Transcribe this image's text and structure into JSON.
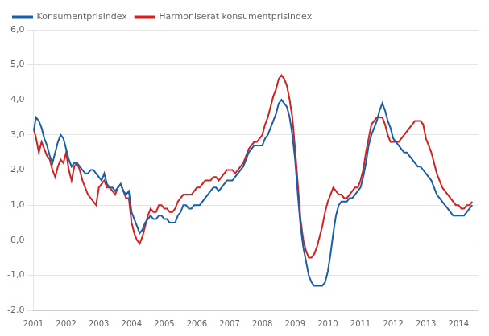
{
  "chart_data": {
    "type": "line",
    "x": [
      2001,
      2001.0833333333333,
      2001.1666666666667,
      2001.25,
      2001.3333333333333,
      2001.4166666666667,
      2001.5,
      2001.5833333333333,
      2001.6666666666667,
      2001.75,
      2001.8333333333333,
      2001.9166666666667,
      2002,
      2002.0833333333333,
      2002.1666666666667,
      2002.25,
      2002.3333333333333,
      2002.4166666666667,
      2002.5,
      2002.5833333333333,
      2002.6666666666667,
      2002.75,
      2002.8333333333333,
      2002.9166666666667,
      2003,
      2003.0833333333333,
      2003.1666666666667,
      2003.25,
      2003.3333333333333,
      2003.4166666666667,
      2003.5,
      2003.5833333333333,
      2003.6666666666667,
      2003.75,
      2003.8333333333333,
      2003.9166666666667,
      2004,
      2004.0833333333333,
      2004.1666666666667,
      2004.25,
      2004.3333333333333,
      2004.4166666666667,
      2004.5,
      2004.5833333333333,
      2004.6666666666667,
      2004.75,
      2004.8333333333333,
      2004.9166666666667,
      2005,
      2005.0833333333333,
      2005.1666666666667,
      2005.25,
      2005.3333333333333,
      2005.4166666666667,
      2005.5,
      2005.5833333333333,
      2005.6666666666667,
      2005.75,
      2005.8333333333333,
      2005.9166666666667,
      2006,
      2006.0833333333333,
      2006.1666666666667,
      2006.25,
      2006.3333333333333,
      2006.4166666666667,
      2006.5,
      2006.5833333333333,
      2006.6666666666667,
      2006.75,
      2006.8333333333333,
      2006.9166666666667,
      2007,
      2007.0833333333333,
      2007.1666666666667,
      2007.25,
      2007.3333333333333,
      2007.4166666666667,
      2007.5,
      2007.5833333333333,
      2007.6666666666667,
      2007.75,
      2007.8333333333333,
      2007.9166666666667,
      2008,
      2008.0833333333333,
      2008.1666666666667,
      2008.25,
      2008.3333333333333,
      2008.4166666666667,
      2008.5,
      2008.5833333333333,
      2008.6666666666667,
      2008.75,
      2008.8333333333333,
      2008.9166666666667,
      2009,
      2009.0833333333333,
      2009.1666666666667,
      2009.25,
      2009.3333333333333,
      2009.4166666666667,
      2009.5,
      2009.5833333333333,
      2009.6666666666667,
      2009.75,
      2009.8333333333333,
      2009.9166666666667,
      2010,
      2010.0833333333333,
      2010.1666666666667,
      2010.25,
      2010.3333333333333,
      2010.4166666666667,
      2010.5,
      2010.5833333333333,
      2010.6666666666667,
      2010.75,
      2010.8333333333333,
      2010.9166666666667,
      2011,
      2011.0833333333333,
      2011.1666666666667,
      2011.25,
      2011.3333333333333,
      2011.4166666666667,
      2011.5,
      2011.5833333333333,
      2011.6666666666667,
      2011.75,
      2011.8333333333333,
      2011.9166666666667,
      2012,
      2012.0833333333333,
      2012.1666666666667,
      2012.25,
      2012.3333333333333,
      2012.4166666666667,
      2012.5,
      2012.5833333333333,
      2012.6666666666667,
      2012.75,
      2012.8333333333333,
      2012.9166666666667,
      2013,
      2013.0833333333333,
      2013.1666666666667,
      2013.25,
      2013.3333333333333,
      2013.4166666666667,
      2013.5,
      2013.5833333333333,
      2013.6666666666667,
      2013.75,
      2013.8333333333333,
      2013.9166666666667,
      2014,
      2014.0833333333333,
      2014.1666666666667,
      2014.25,
      2014.3333333333333,
      2014.4166666666667
    ],
    "series": [
      {
        "name": "Konsumentprisindex",
        "color": "#1a5fa8",
        "values": [
          3.1,
          3.5,
          3.4,
          3.2,
          2.9,
          2.7,
          2.4,
          2.2,
          2.5,
          2.8,
          3.0,
          2.9,
          2.6,
          2.3,
          2.1,
          2.2,
          2.2,
          2.1,
          2.0,
          1.9,
          1.9,
          2.0,
          2.0,
          1.9,
          1.8,
          1.7,
          1.9,
          1.6,
          1.5,
          1.5,
          1.4,
          1.5,
          1.6,
          1.4,
          1.3,
          1.4,
          0.8,
          0.6,
          0.4,
          0.2,
          0.3,
          0.5,
          0.6,
          0.7,
          0.6,
          0.6,
          0.7,
          0.7,
          0.6,
          0.6,
          0.5,
          0.5,
          0.5,
          0.7,
          0.8,
          1.0,
          1.0,
          0.9,
          0.9,
          1.0,
          1.0,
          1.0,
          1.1,
          1.2,
          1.3,
          1.4,
          1.5,
          1.5,
          1.4,
          1.5,
          1.6,
          1.7,
          1.7,
          1.7,
          1.8,
          1.9,
          2.0,
          2.1,
          2.3,
          2.5,
          2.6,
          2.7,
          2.7,
          2.7,
          2.7,
          2.9,
          3.0,
          3.2,
          3.4,
          3.6,
          3.9,
          4.0,
          3.9,
          3.8,
          3.5,
          3.0,
          2.3,
          1.3,
          0.4,
          -0.2,
          -0.6,
          -1.0,
          -1.2,
          -1.3,
          -1.3,
          -1.3,
          -1.3,
          -1.2,
          -0.9,
          -0.4,
          0.2,
          0.7,
          1.0,
          1.1,
          1.1,
          1.1,
          1.2,
          1.2,
          1.3,
          1.4,
          1.5,
          1.8,
          2.2,
          2.7,
          3.0,
          3.2,
          3.4,
          3.7,
          3.9,
          3.7,
          3.4,
          3.2,
          2.9,
          2.8,
          2.7,
          2.6,
          2.5,
          2.5,
          2.4,
          2.3,
          2.2,
          2.1,
          2.1,
          2.0,
          1.9,
          1.8,
          1.7,
          1.5,
          1.3,
          1.2,
          1.1,
          1.0,
          0.9,
          0.8,
          0.7,
          0.7,
          0.7,
          0.7,
          0.7,
          0.8,
          0.9,
          1.0
        ]
      },
      {
        "name": "Harmoniserat konsumentprisindex",
        "color": "#d42020",
        "values": [
          3.2,
          2.9,
          2.5,
          2.8,
          2.6,
          2.4,
          2.3,
          2.0,
          1.8,
          2.1,
          2.3,
          2.2,
          2.5,
          2.0,
          1.7,
          2.1,
          2.2,
          2.0,
          1.7,
          1.5,
          1.3,
          1.2,
          1.1,
          1.0,
          1.5,
          1.6,
          1.7,
          1.5,
          1.5,
          1.4,
          1.3,
          1.5,
          1.6,
          1.4,
          1.2,
          1.2,
          0.5,
          0.2,
          0.0,
          -0.1,
          0.1,
          0.4,
          0.7,
          0.9,
          0.8,
          0.8,
          1.0,
          1.0,
          0.9,
          0.9,
          0.8,
          0.8,
          0.9,
          1.1,
          1.2,
          1.3,
          1.3,
          1.3,
          1.3,
          1.4,
          1.5,
          1.5,
          1.6,
          1.7,
          1.7,
          1.7,
          1.8,
          1.8,
          1.7,
          1.8,
          1.9,
          2.0,
          2.0,
          2.0,
          1.9,
          2.0,
          2.1,
          2.2,
          2.4,
          2.6,
          2.7,
          2.8,
          2.8,
          2.9,
          3.0,
          3.3,
          3.5,
          3.8,
          4.1,
          4.3,
          4.6,
          4.7,
          4.6,
          4.4,
          4.0,
          3.5,
          2.6,
          1.6,
          0.6,
          0.0,
          -0.3,
          -0.5,
          -0.5,
          -0.4,
          -0.2,
          0.1,
          0.4,
          0.8,
          1.1,
          1.3,
          1.5,
          1.4,
          1.3,
          1.3,
          1.2,
          1.2,
          1.3,
          1.4,
          1.5,
          1.5,
          1.7,
          2.0,
          2.5,
          2.9,
          3.3,
          3.4,
          3.5,
          3.5,
          3.5,
          3.3,
          3.0,
          2.8,
          2.8,
          2.8,
          2.8,
          2.9,
          3.0,
          3.1,
          3.2,
          3.3,
          3.4,
          3.4,
          3.4,
          3.3,
          2.9,
          2.7,
          2.5,
          2.2,
          1.9,
          1.7,
          1.5,
          1.4,
          1.3,
          1.2,
          1.1,
          1.0,
          1.0,
          0.9,
          0.9,
          1.0,
          1.0,
          1.1
        ]
      }
    ],
    "xlim": [
      2001,
      2014.5833333333333
    ],
    "xticks": [
      2001,
      2002,
      2003,
      2004,
      2005,
      2006,
      2007,
      2008,
      2009,
      2010,
      2011,
      2012,
      2013,
      2014
    ],
    "ylim": [
      -2.0,
      6.0
    ],
    "yticks": [
      {
        "value": -2.0,
        "label": "-2,0"
      },
      {
        "value": -1.0,
        "label": "-1,0"
      },
      {
        "value": 0.0,
        "label": "0,0"
      },
      {
        "value": 1.0,
        "label": "1,0"
      },
      {
        "value": 2.0,
        "label": "2,0"
      },
      {
        "value": 3.0,
        "label": "3,0"
      },
      {
        "value": 4.0,
        "label": "4,0"
      },
      {
        "value": 5.0,
        "label": "5,0"
      },
      {
        "value": 6.0,
        "label": "6,0"
      }
    ],
    "grid": "y",
    "legend": "upper left"
  }
}
